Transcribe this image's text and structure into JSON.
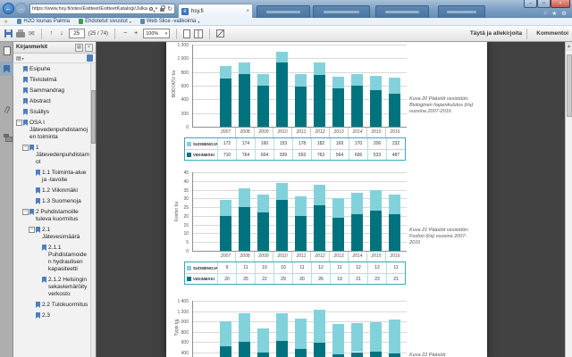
{
  "browser": {
    "address_url": "https://www.hsy.fi/sites/Esitteet/EsitteetKatalogi/Julkaisusarja/1_2017...",
    "active_tab_label": "hsy.fi",
    "inactive_tabs": [
      "",
      "",
      "",
      ""
    ],
    "favorites": [
      {
        "label": "H2O lounas Palmia",
        "dropdown": false
      },
      {
        "label": "Ehdotetut sivustot",
        "dropdown": true
      },
      {
        "label": "Web Slice -valikoima",
        "dropdown": true
      }
    ]
  },
  "pdf_toolbar": {
    "page_number": "25",
    "page_indicator": "(25 / 74)",
    "zoom_value": "100%",
    "fill_sign_label": "Täytä ja allekirjoita",
    "comment_label": "Kommentoi"
  },
  "bookmarks_panel": {
    "title": "Kirjanmerkit",
    "items": [
      {
        "label": "Esipuhe",
        "indent": 0,
        "expander": false
      },
      {
        "label": "Tiivistelmä",
        "indent": 0,
        "expander": false
      },
      {
        "label": "Sammandrag",
        "indent": 0,
        "expander": false
      },
      {
        "label": "Abstract",
        "indent": 0,
        "expander": false
      },
      {
        "label": "Sisällys",
        "indent": 0,
        "expander": false
      },
      {
        "label": "OSA I Jätevedenpuhdistamojen toiminta",
        "indent": 0,
        "expander": true
      },
      {
        "label": "1 Jätevedenpuhdistamot",
        "indent": 1,
        "expander": true
      },
      {
        "label": "1.1 Toiminta-alue ja -tavoite",
        "indent": 2,
        "expander": false
      },
      {
        "label": "1.2 Viikinmäki",
        "indent": 2,
        "expander": false
      },
      {
        "label": "1.3 Suomenoja",
        "indent": 2,
        "expander": false
      },
      {
        "label": "2 Puhdistamoille tuleva kuormitus",
        "indent": 1,
        "expander": true
      },
      {
        "label": "2.1 Jätevesimäärä",
        "indent": 2,
        "expander": true
      },
      {
        "label": "2.1.1 Puhdistamoiden hydraulisen kapasiteetti",
        "indent": 3,
        "expander": false
      },
      {
        "label": "2.1.2 Helsingin sekaviemäröity verkosto",
        "indent": 3,
        "expander": false
      },
      {
        "label": "2.2 Tulokuormitus",
        "indent": 2,
        "expander": false
      },
      {
        "label": "2.3",
        "indent": 2,
        "expander": false
      }
    ]
  },
  "chart_data": [
    {
      "type": "bar",
      "stacked": true,
      "caption": "Kuva 20 Päästöt vesistöön: Biologinen hapenkulutus (t/a) vuosina 2007-2016",
      "ylabel": "BOD7ATU t/a",
      "categories": [
        "2007",
        "2008",
        "2009",
        "2010",
        "2011",
        "2012",
        "2013",
        "2014",
        "2015",
        "2016"
      ],
      "series": [
        {
          "name": "SUOMENOJA",
          "color": "#82D2DB",
          "values": [
            172,
            174,
            160,
            153,
            178,
            182,
            169,
            170,
            206,
            232
          ]
        },
        {
          "name": "VIIKINMÄKI",
          "color": "#00737F",
          "values": [
            710,
            764,
            604,
            939,
            593,
            763,
            564,
            606,
            533,
            487
          ]
        }
      ],
      "ylim": [
        0,
        1200
      ],
      "ytick": 200,
      "grid": true,
      "legend_position": "table-below"
    },
    {
      "type": "bar",
      "stacked": true,
      "caption": "Kuva 21 Päästöt vesistöön: Fosfori (t/a) vuosina 2007-2016",
      "ylabel": "Fosfori t/a",
      "categories": [
        "2007",
        "2008",
        "2009",
        "2010",
        "2011",
        "2012",
        "2013",
        "2014",
        "2015",
        "2016"
      ],
      "series": [
        {
          "name": "SUOMENOJA",
          "color": "#82D2DB",
          "values": [
            9,
            11,
            10,
            10,
            11,
            12,
            11,
            12,
            12,
            11
          ]
        },
        {
          "name": "VIIKINMÄKI",
          "color": "#00737F",
          "values": [
            20,
            25,
            22,
            29,
            20,
            26,
            19,
            21,
            23,
            21
          ]
        }
      ],
      "ylim": [
        0,
        45
      ],
      "ytick": 5,
      "grid": true,
      "legend_position": "table-below"
    },
    {
      "type": "bar",
      "stacked": true,
      "partially_visible": true,
      "caption": "Kuva 22 Päästöt",
      "ylabel": "Typpi t/a",
      "categories": [
        "2007",
        "2008",
        "2009",
        "2010",
        "2011",
        "2012",
        "2013",
        "2014",
        "2015",
        "2016"
      ],
      "series": [
        {
          "name": "SUOMENOJA",
          "color": "#82D2DB",
          "values": [
            495,
            555,
            475,
            530,
            585,
            650,
            600,
            570,
            580,
            665
          ]
        },
        {
          "name": "VIIKINMÄKI",
          "color": "#00737F",
          "values": [
            505,
            600,
            390,
            620,
            460,
            580,
            350,
            400,
            405,
            370
          ]
        }
      ],
      "ylim_visible": [
        400,
        1400
      ],
      "ytick": 200,
      "grid": true
    }
  ]
}
